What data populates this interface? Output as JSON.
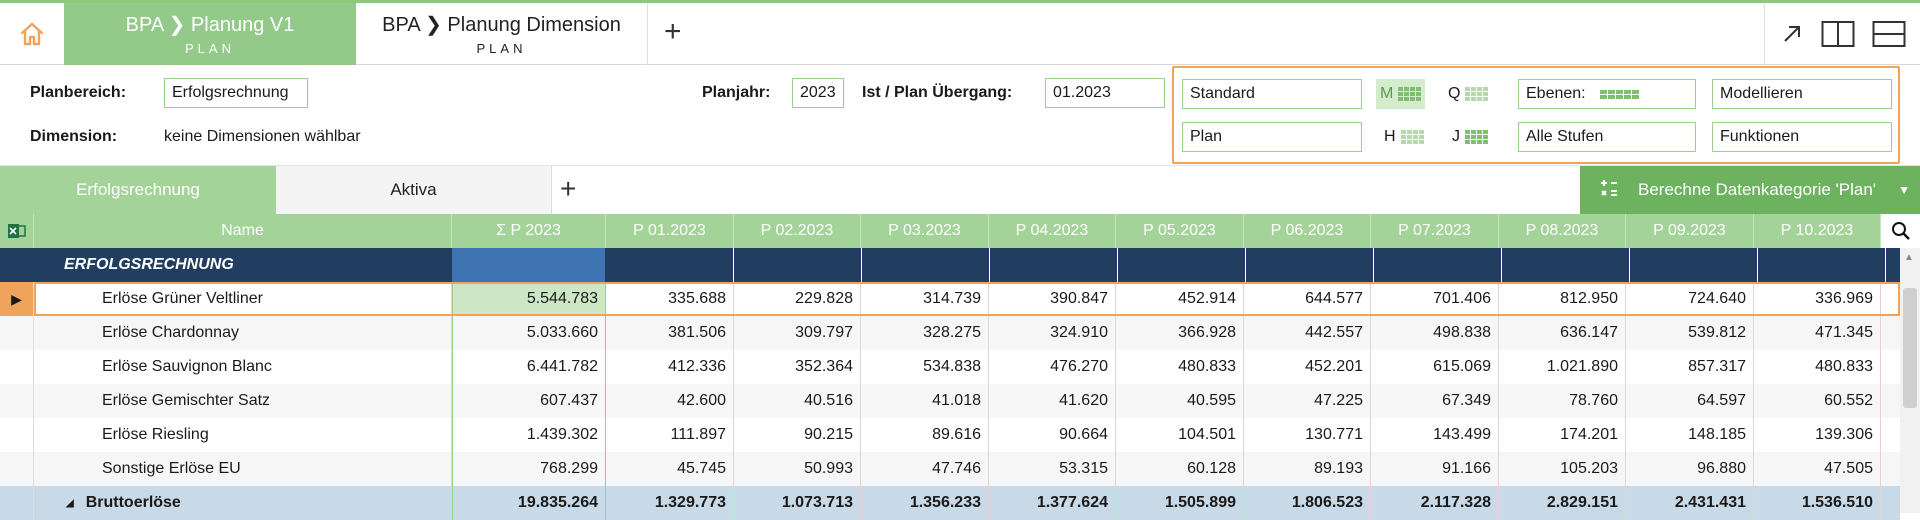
{
  "tabs": {
    "active": {
      "title": "BPA ❯ Planung V1",
      "sub": "PLAN"
    },
    "inactive": {
      "title": "BPA ❯ Planung Dimension",
      "sub": "PLAN"
    },
    "add": "+"
  },
  "params": {
    "planbereich_label": "Planbereich:",
    "planbereich_value": "Erfolgsrechnung",
    "dimension_label": "Dimension:",
    "dimension_value": "keine Dimensionen wählbar",
    "planjahr_label": "Planjahr:",
    "planjahr_value": "2023",
    "ist_plan_label": "Ist / Plan Übergang:",
    "ist_plan_value": "01.2023"
  },
  "options": {
    "standard": "Standard",
    "plan": "Plan",
    "m": "M",
    "q": "Q",
    "h": "H",
    "j": "J",
    "ebenen": "Ebenen:",
    "alle_stufen": "Alle Stufen",
    "modellieren": "Modellieren",
    "funktionen": "Funktionen"
  },
  "sheets": {
    "active": "Erfolgsrechnung",
    "inactive": "Aktiva",
    "add": "+",
    "calc_button": "Berechne Datenkategorie 'Plan'"
  },
  "grid": {
    "headers": [
      "Name",
      "Σ  P  2023",
      "P 01.2023",
      "P 02.2023",
      "P 03.2023",
      "P 04.2023",
      "P 05.2023",
      "P 06.2023",
      "P 07.2023",
      "P 08.2023",
      "P 09.2023",
      "P 10.2023"
    ],
    "section_title": "ERFOLGSRECHNUNG",
    "rows": [
      {
        "name": "Erlöse Grüner Veltliner",
        "values": [
          "5.544.783",
          "335.688",
          "229.828",
          "314.739",
          "390.847",
          "452.914",
          "644.577",
          "701.406",
          "812.950",
          "724.640",
          "336.969"
        ]
      },
      {
        "name": "Erlöse Chardonnay",
        "values": [
          "5.033.660",
          "381.506",
          "309.797",
          "328.275",
          "324.910",
          "366.928",
          "442.557",
          "498.838",
          "636.147",
          "539.812",
          "471.345"
        ]
      },
      {
        "name": "Erlöse Sauvignon Blanc",
        "values": [
          "6.441.782",
          "412.336",
          "352.364",
          "534.838",
          "476.270",
          "480.833",
          "452.201",
          "615.069",
          "1.021.890",
          "857.317",
          "480.833"
        ]
      },
      {
        "name": "Erlöse Gemischter Satz",
        "values": [
          "607.437",
          "42.600",
          "40.516",
          "41.018",
          "41.620",
          "40.595",
          "47.225",
          "67.349",
          "78.760",
          "64.597",
          "60.552"
        ]
      },
      {
        "name": "Erlöse Riesling",
        "values": [
          "1.439.302",
          "111.897",
          "90.215",
          "89.616",
          "90.664",
          "104.501",
          "130.771",
          "143.499",
          "174.201",
          "148.185",
          "139.306"
        ]
      },
      {
        "name": "Sonstige Erlöse EU",
        "values": [
          "768.299",
          "45.745",
          "50.993",
          "47.746",
          "53.315",
          "60.128",
          "89.193",
          "91.166",
          "105.203",
          "96.880",
          "47.505"
        ]
      }
    ],
    "total": {
      "name": "Bruttoerlöse",
      "values": [
        "19.835.264",
        "1.329.773",
        "1.073.713",
        "1.356.233",
        "1.377.624",
        "1.505.899",
        "1.806.523",
        "2.117.328",
        "2.829.151",
        "2.431.431",
        "1.536.510"
      ]
    }
  },
  "colors": {
    "accent_green": "#93c989",
    "header_green": "#a3d398",
    "navy": "#213d5f",
    "orange": "#f0a35a",
    "selected_blue": "#3f74b3"
  }
}
